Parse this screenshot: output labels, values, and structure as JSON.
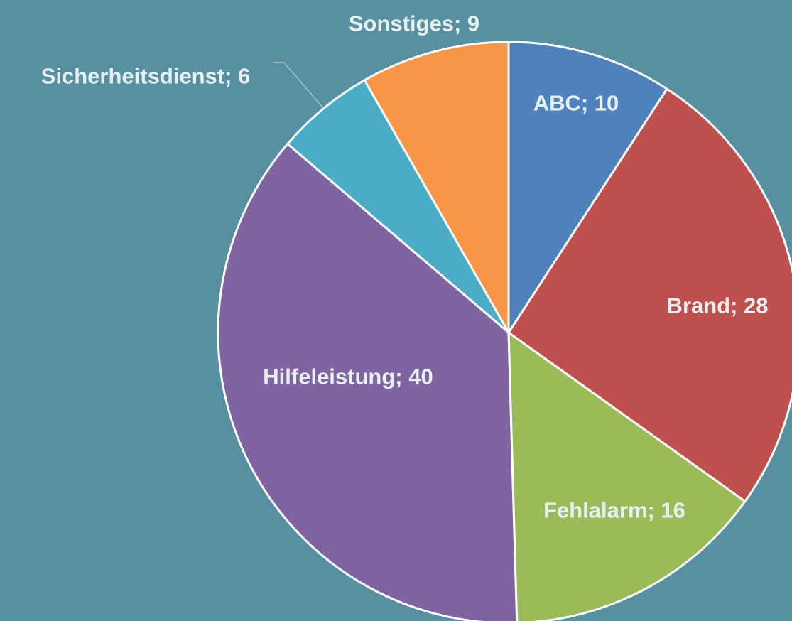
{
  "chart_data": {
    "type": "pie",
    "values": [
      10,
      28,
      16,
      40,
      6,
      9
    ],
    "value_labels": [
      "ABC; 10",
      "Brand; 28",
      "Fehlalarm; 16",
      "Hilfeleistung; 40",
      "Sicherheitsdienst; 6",
      "Sonstiges; 9"
    ],
    "colors": [
      "#4f81bd",
      "#c0504d",
      "#9bbb59",
      "#8064a2",
      "#4bacc6",
      "#f79646"
    ]
  }
}
